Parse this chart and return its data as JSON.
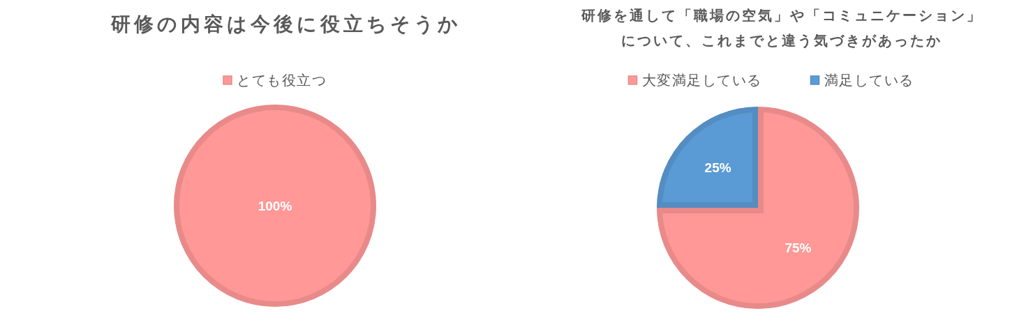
{
  "chart_data": [
    {
      "type": "pie",
      "title": "研修の内容は今後に役立ちそうか",
      "categories": [
        "とても役立つ"
      ],
      "values": [
        100
      ],
      "colors": [
        "#ff9896"
      ],
      "value_labels": [
        "100%"
      ],
      "legend": "top"
    },
    {
      "type": "pie",
      "title": "研修を通して「職場の空気」や「コミュニケーション」について、これまでと違う気づきがあったか",
      "categories": [
        "大変満足している",
        "満足している"
      ],
      "values": [
        75,
        25
      ],
      "colors": [
        "#ff9896",
        "#5b9bd5"
      ],
      "value_labels": [
        "75%",
        "25%"
      ],
      "legend": "top"
    }
  ]
}
